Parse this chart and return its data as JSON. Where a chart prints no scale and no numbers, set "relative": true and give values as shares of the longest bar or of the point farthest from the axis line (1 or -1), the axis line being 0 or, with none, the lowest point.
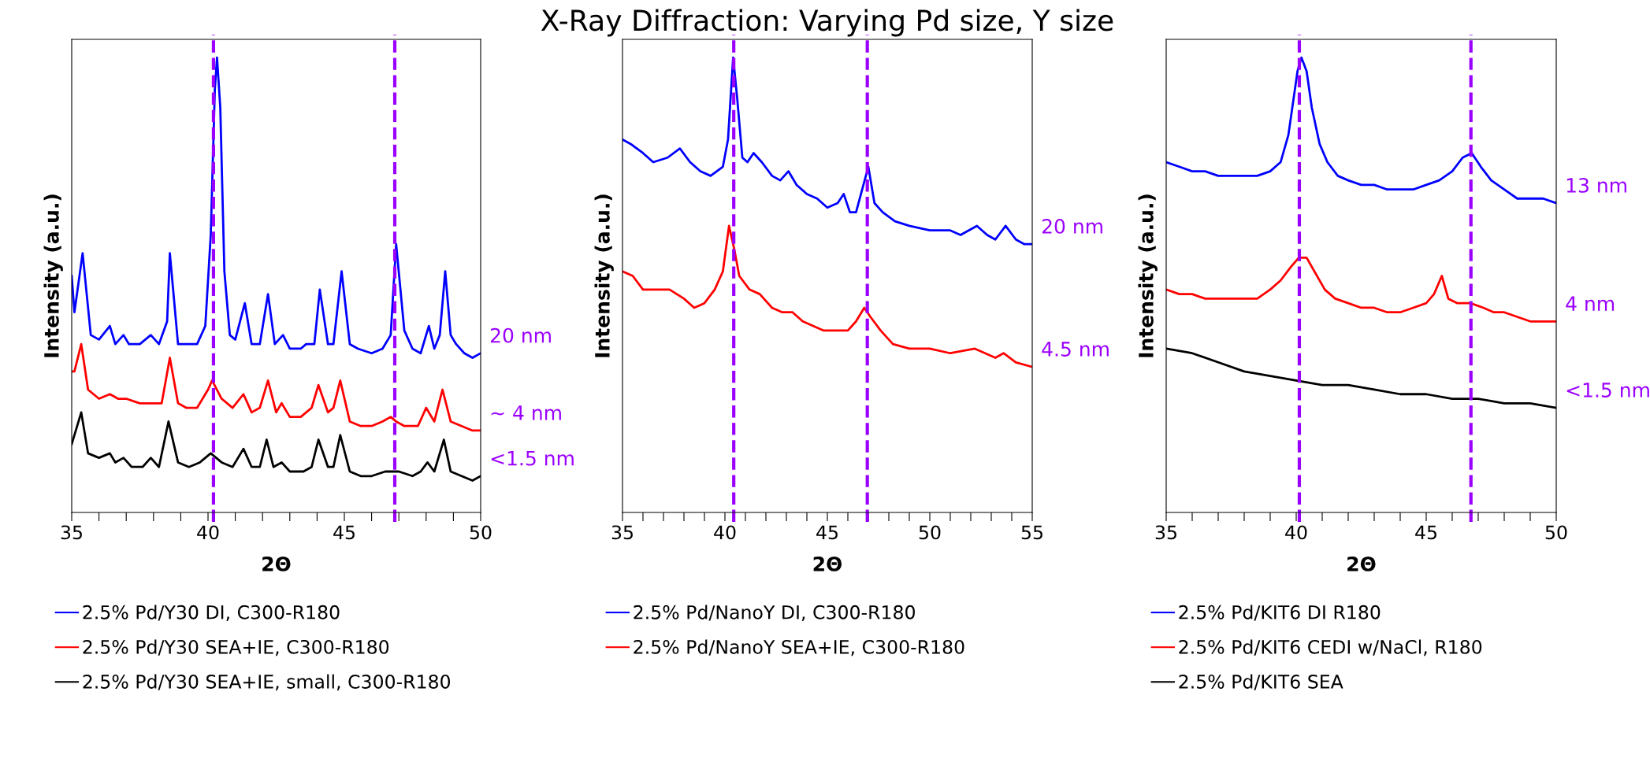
{
  "chart_data": [
    {
      "type": "line",
      "xlabel": "2Θ",
      "ylabel": "Intensity (a.u.)",
      "relative": true,
      "tick_labels": "x",
      "legend": "bottom",
      "grid": false,
      "xlim": [
        35,
        50
      ],
      "xticks": [
        35,
        {
          "value": 36,
          "label": null
        },
        {
          "value": 37,
          "label": null
        },
        {
          "value": 38,
          "label": null
        },
        {
          "value": 39,
          "label": null
        },
        40,
        {
          "value": 41,
          "label": null
        },
        {
          "value": 42,
          "label": null
        },
        {
          "value": 43,
          "label": null
        },
        {
          "value": 44,
          "label": null
        },
        45,
        {
          "value": 46,
          "label": null
        },
        {
          "value": 47,
          "label": null
        },
        {
          "value": 48,
          "label": null
        },
        {
          "value": 49,
          "label": null
        },
        50
      ],
      "ref_lines": [
        {
          "axis": "x",
          "value": 40.2,
          "color": "#9b00ff",
          "line_style": "dashed"
        },
        {
          "axis": "x",
          "value": 46.85,
          "color": "#9b00ff",
          "line_style": "dashed"
        }
      ],
      "annotations": [
        "20 nm",
        "~ 4 nm",
        "<1.5 nm"
      ],
      "series": [
        {
          "name": "2.5% Pd/Y30 DI, C300-R180",
          "color": "#0000ff",
          "x": [
            35,
            35.1,
            35.4,
            35.7,
            36.0,
            36.4,
            36.6,
            36.9,
            37.1,
            37.5,
            37.9,
            38.2,
            38.5,
            38.6,
            38.9,
            39.2,
            39.6,
            39.9,
            40.1,
            40.25,
            40.33,
            40.45,
            40.6,
            40.8,
            41.0,
            41.35,
            41.6,
            41.9,
            42.2,
            42.45,
            42.75,
            43.0,
            43.4,
            43.6,
            43.9,
            44.1,
            44.4,
            44.6,
            44.9,
            45.2,
            45.5,
            46.0,
            46.4,
            46.7,
            46.9,
            47.2,
            47.5,
            47.8,
            48.1,
            48.3,
            48.5,
            48.7,
            48.9,
            49.1,
            49.4,
            49.7,
            50
          ],
          "values": [
            0.52,
            0.44,
            0.57,
            0.39,
            0.38,
            0.41,
            0.37,
            0.39,
            0.37,
            0.37,
            0.39,
            0.37,
            0.42,
            0.57,
            0.37,
            0.37,
            0.37,
            0.41,
            0.61,
            0.93,
            1.0,
            0.89,
            0.53,
            0.39,
            0.38,
            0.46,
            0.37,
            0.37,
            0.48,
            0.37,
            0.39,
            0.36,
            0.36,
            0.37,
            0.37,
            0.49,
            0.37,
            0.37,
            0.53,
            0.37,
            0.36,
            0.35,
            0.36,
            0.39,
            0.59,
            0.4,
            0.36,
            0.35,
            0.41,
            0.36,
            0.39,
            0.53,
            0.39,
            0.37,
            0.35,
            0.34,
            0.35
          ]
        },
        {
          "name": "2.5% Pd/Y30 SEA+IE, C300-R180",
          "color": "#ff0000",
          "x": [
            35,
            35.1,
            35.35,
            35.6,
            36.0,
            36.4,
            36.7,
            37.0,
            37.5,
            37.9,
            38.3,
            38.6,
            38.9,
            39.2,
            39.6,
            40.0,
            40.15,
            40.5,
            40.9,
            41.3,
            41.6,
            41.9,
            42.2,
            42.5,
            42.7,
            43.0,
            43.4,
            43.8,
            44.05,
            44.4,
            44.6,
            44.85,
            45.2,
            45.6,
            46.0,
            46.4,
            46.7,
            46.9,
            47.2,
            47.7,
            48.0,
            48.3,
            48.6,
            48.9,
            49.3,
            49.7,
            50
          ],
          "values": [
            0.31,
            0.31,
            0.37,
            0.27,
            0.25,
            0.26,
            0.25,
            0.25,
            0.24,
            0.24,
            0.24,
            0.34,
            0.24,
            0.23,
            0.23,
            0.27,
            0.29,
            0.25,
            0.23,
            0.26,
            0.22,
            0.23,
            0.29,
            0.22,
            0.24,
            0.21,
            0.21,
            0.23,
            0.28,
            0.22,
            0.23,
            0.29,
            0.2,
            0.19,
            0.19,
            0.2,
            0.21,
            0.2,
            0.19,
            0.19,
            0.23,
            0.2,
            0.27,
            0.2,
            0.19,
            0.18,
            0.18
          ]
        },
        {
          "name": "2.5% Pd/Y30 SEA+IE, small, C300-R180",
          "color": "#000000",
          "x": [
            35,
            35.35,
            35.6,
            36.0,
            36.4,
            36.6,
            36.9,
            37.2,
            37.6,
            37.9,
            38.2,
            38.55,
            38.9,
            39.3,
            39.7,
            40.1,
            40.5,
            40.9,
            41.3,
            41.6,
            41.9,
            42.15,
            42.4,
            42.7,
            43.0,
            43.5,
            43.8,
            44.05,
            44.4,
            44.6,
            44.85,
            45.2,
            45.6,
            46.0,
            46.5,
            46.7,
            47.0,
            47.5,
            47.8,
            48.05,
            48.3,
            48.65,
            48.9,
            49.3,
            49.7,
            50
          ],
          "values": [
            0.15,
            0.22,
            0.13,
            0.12,
            0.13,
            0.11,
            0.12,
            0.1,
            0.1,
            0.12,
            0.1,
            0.2,
            0.11,
            0.1,
            0.11,
            0.13,
            0.11,
            0.1,
            0.14,
            0.1,
            0.1,
            0.16,
            0.1,
            0.11,
            0.09,
            0.09,
            0.1,
            0.16,
            0.1,
            0.1,
            0.17,
            0.09,
            0.08,
            0.08,
            0.09,
            0.09,
            0.09,
            0.08,
            0.09,
            0.11,
            0.09,
            0.16,
            0.09,
            0.08,
            0.07,
            0.08
          ]
        }
      ]
    },
    {
      "type": "line",
      "title": "X-Ray Diffraction: Varying Pd size, Y size",
      "xlabel": "2Θ",
      "ylabel": "Intensity (a.u.)",
      "relative": true,
      "tick_labels": "x",
      "legend": "bottom",
      "grid": false,
      "xlim": [
        35,
        55
      ],
      "xticks": [
        35,
        {
          "value": 36,
          "label": null
        },
        {
          "value": 37,
          "label": null
        },
        {
          "value": 38,
          "label": null
        },
        {
          "value": 39,
          "label": null
        },
        40,
        {
          "value": 41,
          "label": null
        },
        {
          "value": 42,
          "label": null
        },
        {
          "value": 43,
          "label": null
        },
        {
          "value": 44,
          "label": null
        },
        45,
        {
          "value": 46,
          "label": null
        },
        {
          "value": 47,
          "label": null
        },
        {
          "value": 48,
          "label": null
        },
        {
          "value": 49,
          "label": null
        },
        50,
        {
          "value": 51,
          "label": null
        },
        {
          "value": 52,
          "label": null
        },
        {
          "value": 53,
          "label": null
        },
        {
          "value": 54,
          "label": null
        },
        55
      ],
      "ref_lines": [
        {
          "axis": "x",
          "value": 40.43,
          "color": "#9b00ff",
          "line_style": "dashed"
        },
        {
          "axis": "x",
          "value": 46.95,
          "color": "#9b00ff",
          "line_style": "dashed"
        }
      ],
      "annotations": [
        "20 nm",
        "4.5 nm"
      ],
      "series": [
        {
          "name": "2.5% Pd/NanoY DI, C300-R180",
          "color": "#0000ff",
          "x": [
            35,
            35.4,
            36.0,
            36.5,
            37.2,
            37.8,
            38.3,
            38.8,
            39.3,
            39.9,
            40.15,
            40.4,
            40.6,
            40.85,
            41.1,
            41.4,
            41.8,
            42.3,
            42.7,
            43.1,
            43.5,
            44.0,
            44.5,
            45.0,
            45.5,
            45.8,
            46.1,
            46.4,
            46.7,
            47.0,
            47.3,
            47.7,
            48.3,
            49.0,
            50,
            51,
            51.5,
            52.3,
            52.8,
            53.2,
            53.7,
            54.2,
            54.6,
            55
          ],
          "values": [
            0.82,
            0.81,
            0.79,
            0.77,
            0.78,
            0.8,
            0.77,
            0.75,
            0.74,
            0.76,
            0.82,
            1.0,
            0.91,
            0.78,
            0.77,
            0.79,
            0.77,
            0.74,
            0.73,
            0.75,
            0.72,
            0.7,
            0.69,
            0.67,
            0.68,
            0.7,
            0.66,
            0.66,
            0.71,
            0.76,
            0.68,
            0.66,
            0.64,
            0.63,
            0.62,
            0.62,
            0.61,
            0.63,
            0.61,
            0.6,
            0.63,
            0.6,
            0.59,
            0.59
          ]
        },
        {
          "name": "2.5% Pd/NanoY SEA+IE, C300-R180",
          "color": "#ff0000",
          "x": [
            35,
            35.5,
            36.0,
            36.6,
            37.3,
            38.0,
            38.5,
            39.0,
            39.5,
            39.9,
            40.2,
            40.45,
            40.7,
            41.2,
            41.7,
            42.3,
            42.8,
            43.3,
            43.8,
            44.3,
            44.8,
            45.5,
            46.0,
            46.4,
            46.8,
            47.1,
            47.6,
            48.2,
            49,
            50,
            51,
            52.2,
            52.7,
            53.2,
            53.6,
            54.2,
            55
          ],
          "values": [
            0.53,
            0.52,
            0.49,
            0.49,
            0.49,
            0.47,
            0.45,
            0.46,
            0.49,
            0.53,
            0.63,
            0.58,
            0.52,
            0.49,
            0.48,
            0.45,
            0.44,
            0.44,
            0.42,
            0.41,
            0.4,
            0.4,
            0.4,
            0.42,
            0.45,
            0.43,
            0.4,
            0.37,
            0.36,
            0.36,
            0.35,
            0.36,
            0.35,
            0.34,
            0.35,
            0.33,
            0.32
          ]
        }
      ]
    },
    {
      "type": "line",
      "xlabel": "2Θ",
      "ylabel": "Intensity (a.u.)",
      "relative": true,
      "tick_labels": "x",
      "legend": "bottom",
      "grid": false,
      "xlim": [
        35,
        50
      ],
      "xticks": [
        35,
        {
          "value": 36,
          "label": null
        },
        {
          "value": 37,
          "label": null
        },
        {
          "value": 38,
          "label": null
        },
        {
          "value": 39,
          "label": null
        },
        40,
        {
          "value": 41,
          "label": null
        },
        {
          "value": 42,
          "label": null
        },
        {
          "value": 43,
          "label": null
        },
        {
          "value": 44,
          "label": null
        },
        45,
        {
          "value": 46,
          "label": null
        },
        {
          "value": 47,
          "label": null
        },
        {
          "value": 48,
          "label": null
        },
        {
          "value": 49,
          "label": null
        },
        50
      ],
      "ref_lines": [
        {
          "axis": "x",
          "value": 40.12,
          "color": "#9b00ff",
          "line_style": "dashed"
        },
        {
          "axis": "x",
          "value": 46.72,
          "color": "#9b00ff",
          "line_style": "dashed"
        }
      ],
      "annotations": [
        "13 nm",
        "4 nm",
        "<1.5 nm"
      ],
      "series": [
        {
          "name": "2.5% Pd/KIT6 DI R180",
          "color": "#0000ff",
          "x": [
            35,
            35.5,
            36,
            36.5,
            37,
            37.5,
            38,
            38.5,
            39,
            39.4,
            39.7,
            39.9,
            40.05,
            40.2,
            40.4,
            40.6,
            40.9,
            41.2,
            41.6,
            42,
            42.5,
            43,
            43.5,
            44,
            44.5,
            45,
            45.5,
            46,
            46.4,
            46.75,
            47.1,
            47.5,
            48,
            48.5,
            49,
            49.5,
            50
          ],
          "values": [
            0.77,
            0.76,
            0.75,
            0.75,
            0.74,
            0.74,
            0.74,
            0.74,
            0.75,
            0.77,
            0.83,
            0.91,
            0.97,
            1.0,
            0.97,
            0.89,
            0.81,
            0.77,
            0.74,
            0.73,
            0.72,
            0.72,
            0.71,
            0.71,
            0.71,
            0.72,
            0.73,
            0.75,
            0.78,
            0.79,
            0.76,
            0.73,
            0.71,
            0.69,
            0.69,
            0.69,
            0.68
          ]
        },
        {
          "name": "2.5% Pd/KIT6 CEDI w/NaCl, R180",
          "color": "#ff0000",
          "x": [
            35,
            35.5,
            36,
            36.5,
            37,
            37.5,
            38,
            38.5,
            39,
            39.4,
            39.8,
            40.1,
            40.4,
            40.7,
            41.1,
            41.5,
            42,
            42.5,
            43,
            43.5,
            44,
            44.5,
            45,
            45.3,
            45.6,
            45.85,
            46.2,
            46.7,
            47.2,
            47.6,
            48,
            48.5,
            49,
            49.5,
            50
          ],
          "values": [
            0.49,
            0.48,
            0.48,
            0.47,
            0.47,
            0.47,
            0.47,
            0.47,
            0.49,
            0.51,
            0.54,
            0.56,
            0.56,
            0.53,
            0.49,
            0.47,
            0.46,
            0.45,
            0.45,
            0.44,
            0.44,
            0.45,
            0.46,
            0.48,
            0.52,
            0.47,
            0.46,
            0.46,
            0.45,
            0.44,
            0.44,
            0.43,
            0.42,
            0.42,
            0.42
          ]
        },
        {
          "name": "2.5% Pd/KIT6 SEA",
          "color": "#000000",
          "x": [
            35,
            36,
            37,
            38,
            39,
            40,
            41,
            42,
            43,
            44,
            45,
            46,
            47,
            48,
            49,
            50
          ],
          "values": [
            0.36,
            0.35,
            0.33,
            0.31,
            0.3,
            0.29,
            0.28,
            0.28,
            0.27,
            0.26,
            0.26,
            0.25,
            0.25,
            0.24,
            0.24,
            0.23
          ]
        }
      ]
    }
  ]
}
